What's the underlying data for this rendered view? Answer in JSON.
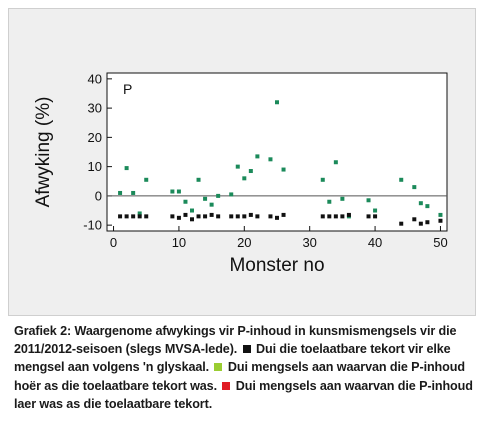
{
  "chart_data": {
    "type": "scatter",
    "ylabel": "Afwyking (%)",
    "xlabel": "Monster no",
    "panel_label": "P",
    "xlim": [
      -1,
      51
    ],
    "ylim": [
      -12,
      42
    ],
    "x_ticks": [
      0,
      10,
      20,
      30,
      40,
      50
    ],
    "y_ticks": [
      -10,
      0,
      10,
      20,
      30,
      40
    ],
    "reference_line": 0,
    "grid": false,
    "series": [
      {
        "color": "#1b8a5a",
        "marker": "square",
        "points": [
          [
            1,
            1
          ],
          [
            2,
            9.5
          ],
          [
            3,
            1
          ],
          [
            4,
            -6
          ],
          [
            5,
            5.5
          ],
          [
            9,
            1.5
          ],
          [
            10,
            1.5
          ],
          [
            11,
            -2
          ],
          [
            12,
            -5
          ],
          [
            13,
            5.5
          ],
          [
            14,
            -1
          ],
          [
            15,
            -3
          ],
          [
            16,
            0
          ],
          [
            18,
            0.5
          ],
          [
            19,
            10
          ],
          [
            20,
            6
          ],
          [
            21,
            8.5
          ],
          [
            22,
            13.5
          ],
          [
            24,
            12.5
          ],
          [
            25,
            32
          ],
          [
            26,
            9
          ],
          [
            32,
            5.5
          ],
          [
            33,
            -2
          ],
          [
            34,
            11.5
          ],
          [
            35,
            -1
          ],
          [
            36,
            -7
          ],
          [
            39,
            -1.5
          ],
          [
            40,
            -5
          ],
          [
            44,
            5.5
          ],
          [
            46,
            3
          ],
          [
            47,
            -2.5
          ],
          [
            48,
            -3.5
          ],
          [
            50,
            -6.5
          ]
        ]
      },
      {
        "color": "#111111",
        "marker": "square",
        "points": [
          [
            1,
            -7
          ],
          [
            2,
            -7
          ],
          [
            3,
            -7
          ],
          [
            4,
            -7
          ],
          [
            5,
            -7
          ],
          [
            9,
            -7
          ],
          [
            10,
            -7.5
          ],
          [
            11,
            -6.5
          ],
          [
            12,
            -8
          ],
          [
            13,
            -7
          ],
          [
            14,
            -7
          ],
          [
            15,
            -6.5
          ],
          [
            16,
            -7
          ],
          [
            18,
            -7
          ],
          [
            19,
            -7
          ],
          [
            20,
            -7
          ],
          [
            21,
            -6.5
          ],
          [
            22,
            -7
          ],
          [
            24,
            -7
          ],
          [
            25,
            -7.5
          ],
          [
            26,
            -6.5
          ],
          [
            32,
            -7
          ],
          [
            33,
            -7
          ],
          [
            34,
            -7
          ],
          [
            35,
            -7
          ],
          [
            36,
            -6.5
          ],
          [
            39,
            -7
          ],
          [
            40,
            -7
          ],
          [
            44,
            -9.5
          ],
          [
            46,
            -8
          ],
          [
            47,
            -9.5
          ],
          [
            48,
            -9
          ],
          [
            50,
            -8.5
          ]
        ]
      }
    ]
  },
  "caption": {
    "part1": "Grafiek 2: Waargenome afwykings vir P-inhoud in kunsmismengsels vir die 2011/2012-seisoen (slegs MVSA-lede).",
    "part2": "Dui die toelaatbare tekort vir elke mengsel aan volgens 'n glyskaal.",
    "part3": "Dui mengsels aan waarvan die P-inhoud hoër as die toelaatbare tekort was.",
    "part4": "Dui mengsels aan waarvan die P-inhoud laer was as die toelaatbare tekort.",
    "swatch_colors": [
      "#111111",
      "#9acd32",
      "#e01b24"
    ]
  }
}
